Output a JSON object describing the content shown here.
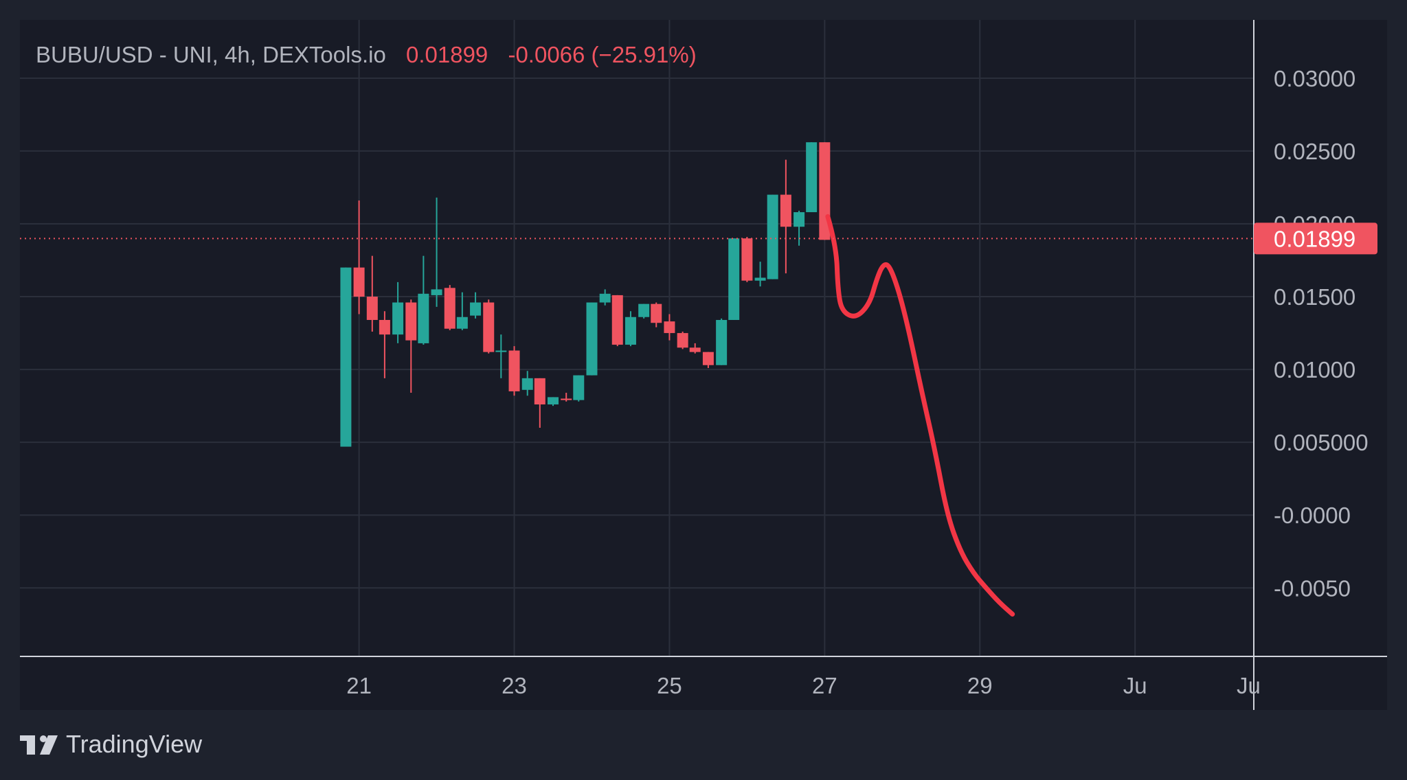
{
  "header": {
    "symbol": "BUBU/USD - UNI, 4h, DEXTools.io",
    "last_price": "0.01899",
    "change": "-0.0066 (−25.91%)"
  },
  "brand": {
    "name": "TradingView",
    "logo_icon": "tradingview-logo-icon"
  },
  "colors": {
    "background": "#1e222d",
    "pane": "#181b26",
    "grid": "#2b2f3b",
    "up": "#26a69a",
    "down": "#f05460",
    "drawing": "#f23645",
    "text": "#b2b5be"
  },
  "chart_data": {
    "type": "candlestick",
    "title": "BUBU/USD - UNI, 4h, DEXTools.io",
    "timeframe": "4h",
    "last_price": 0.01899,
    "price_axis": {
      "position": "right",
      "ticks": [
        {
          "value": 0.03,
          "label": "0.03000"
        },
        {
          "value": 0.025,
          "label": "0.02500"
        },
        {
          "value": 0.02,
          "label": "0.02000"
        },
        {
          "value": 0.015,
          "label": "0.01500"
        },
        {
          "value": 0.01,
          "label": "0.01000"
        },
        {
          "value": 0.005,
          "label": "0.005000"
        },
        {
          "value": 0.0,
          "label": "-0.0000"
        },
        {
          "value": -0.005,
          "label": "-0.0050"
        }
      ],
      "range": [
        -0.0097,
        0.034
      ]
    },
    "time_axis": {
      "ticks": [
        {
          "day": 21,
          "label": "21"
        },
        {
          "day": 23,
          "label": "23"
        },
        {
          "day": 25,
          "label": "25"
        },
        {
          "day": 27,
          "label": "27"
        },
        {
          "day": 29,
          "label": "29"
        },
        {
          "day": 31,
          "label": "Ju"
        }
      ],
      "range_days": [
        16.63,
        32.53
      ]
    },
    "grid": true,
    "candles": [
      {
        "t": 20.83,
        "o": 0.0047,
        "h": 0.017,
        "l": 0.0047,
        "c": 0.017
      },
      {
        "t": 21.0,
        "o": 0.017,
        "h": 0.0216,
        "l": 0.0138,
        "c": 0.015
      },
      {
        "t": 21.17,
        "o": 0.015,
        "h": 0.0178,
        "l": 0.0126,
        "c": 0.0134
      },
      {
        "t": 21.33,
        "o": 0.0134,
        "h": 0.014,
        "l": 0.0094,
        "c": 0.0124
      },
      {
        "t": 21.5,
        "o": 0.0124,
        "h": 0.016,
        "l": 0.0118,
        "c": 0.0146
      },
      {
        "t": 21.67,
        "o": 0.0146,
        "h": 0.0148,
        "l": 0.0084,
        "c": 0.012
      },
      {
        "t": 21.83,
        "o": 0.0118,
        "h": 0.0178,
        "l": 0.0117,
        "c": 0.0152
      },
      {
        "t": 22.0,
        "o": 0.0151,
        "h": 0.0218,
        "l": 0.0143,
        "c": 0.0155
      },
      {
        "t": 22.17,
        "o": 0.0156,
        "h": 0.0158,
        "l": 0.0127,
        "c": 0.0128
      },
      {
        "t": 22.33,
        "o": 0.0128,
        "h": 0.0153,
        "l": 0.0127,
        "c": 0.0136
      },
      {
        "t": 22.5,
        "o": 0.0137,
        "h": 0.0153,
        "l": 0.0135,
        "c": 0.0146
      },
      {
        "t": 22.67,
        "o": 0.0146,
        "h": 0.0148,
        "l": 0.0111,
        "c": 0.0112
      },
      {
        "t": 22.83,
        "o": 0.0112,
        "h": 0.0124,
        "l": 0.0094,
        "c": 0.0113
      },
      {
        "t": 23.0,
        "o": 0.0113,
        "h": 0.0116,
        "l": 0.0082,
        "c": 0.0085
      },
      {
        "t": 23.17,
        "o": 0.0086,
        "h": 0.0099,
        "l": 0.0082,
        "c": 0.0094
      },
      {
        "t": 23.33,
        "o": 0.0094,
        "h": 0.0094,
        "l": 0.006,
        "c": 0.0076
      },
      {
        "t": 23.5,
        "o": 0.0076,
        "h": 0.0081,
        "l": 0.0075,
        "c": 0.0081
      },
      {
        "t": 23.67,
        "o": 0.008,
        "h": 0.0084,
        "l": 0.0078,
        "c": 0.0079
      },
      {
        "t": 23.83,
        "o": 0.0079,
        "h": 0.0096,
        "l": 0.0078,
        "c": 0.0096
      },
      {
        "t": 24.0,
        "o": 0.0096,
        "h": 0.0146,
        "l": 0.0096,
        "c": 0.0146
      },
      {
        "t": 24.17,
        "o": 0.0146,
        "h": 0.0155,
        "l": 0.0144,
        "c": 0.0152
      },
      {
        "t": 24.33,
        "o": 0.0151,
        "h": 0.0151,
        "l": 0.0116,
        "c": 0.0117
      },
      {
        "t": 24.5,
        "o": 0.0117,
        "h": 0.014,
        "l": 0.0116,
        "c": 0.0136
      },
      {
        "t": 24.67,
        "o": 0.0136,
        "h": 0.0145,
        "l": 0.0135,
        "c": 0.0145
      },
      {
        "t": 24.83,
        "o": 0.0145,
        "h": 0.0146,
        "l": 0.0129,
        "c": 0.0132
      },
      {
        "t": 25.0,
        "o": 0.0133,
        "h": 0.0138,
        "l": 0.012,
        "c": 0.0125
      },
      {
        "t": 25.17,
        "o": 0.0125,
        "h": 0.0126,
        "l": 0.0114,
        "c": 0.0115
      },
      {
        "t": 25.33,
        "o": 0.0115,
        "h": 0.0118,
        "l": 0.0111,
        "c": 0.0112
      },
      {
        "t": 25.5,
        "o": 0.0112,
        "h": 0.0112,
        "l": 0.0101,
        "c": 0.0103
      },
      {
        "t": 25.67,
        "o": 0.0103,
        "h": 0.0135,
        "l": 0.0103,
        "c": 0.0134
      },
      {
        "t": 25.83,
        "o": 0.0134,
        "h": 0.019,
        "l": 0.0134,
        "c": 0.019
      },
      {
        "t": 26.0,
        "o": 0.019,
        "h": 0.0191,
        "l": 0.016,
        "c": 0.0161
      },
      {
        "t": 26.17,
        "o": 0.0161,
        "h": 0.0174,
        "l": 0.0157,
        "c": 0.0163
      },
      {
        "t": 26.33,
        "o": 0.0162,
        "h": 0.022,
        "l": 0.0162,
        "c": 0.022
      },
      {
        "t": 26.5,
        "o": 0.022,
        "h": 0.0244,
        "l": 0.0166,
        "c": 0.0198
      },
      {
        "t": 26.67,
        "o": 0.0198,
        "h": 0.0209,
        "l": 0.0185,
        "c": 0.0208
      },
      {
        "t": 26.83,
        "o": 0.0208,
        "h": 0.0256,
        "l": 0.0208,
        "c": 0.0256
      },
      {
        "t": 27.0,
        "o": 0.0256,
        "h": 0.0256,
        "l": 0.0189,
        "c": 0.0189
      }
    ],
    "annotation": {
      "type": "freehand-line",
      "color": "#f23645",
      "points": [
        [
          27.04,
          0.0205
        ],
        [
          27.15,
          0.0185
        ],
        [
          27.17,
          0.0155
        ],
        [
          27.22,
          0.014
        ],
        [
          27.4,
          0.0135
        ],
        [
          27.58,
          0.0145
        ],
        [
          27.67,
          0.0162
        ],
        [
          27.75,
          0.0172
        ],
        [
          27.83,
          0.0172
        ],
        [
          27.95,
          0.0155
        ],
        [
          28.08,
          0.0128
        ],
        [
          28.25,
          0.0085
        ],
        [
          28.42,
          0.0045
        ],
        [
          28.58,
          0.0
        ],
        [
          28.75,
          -0.0025
        ],
        [
          28.92,
          -0.004
        ],
        [
          29.08,
          -0.005
        ],
        [
          29.25,
          -0.006
        ],
        [
          29.42,
          -0.0068
        ]
      ]
    }
  }
}
